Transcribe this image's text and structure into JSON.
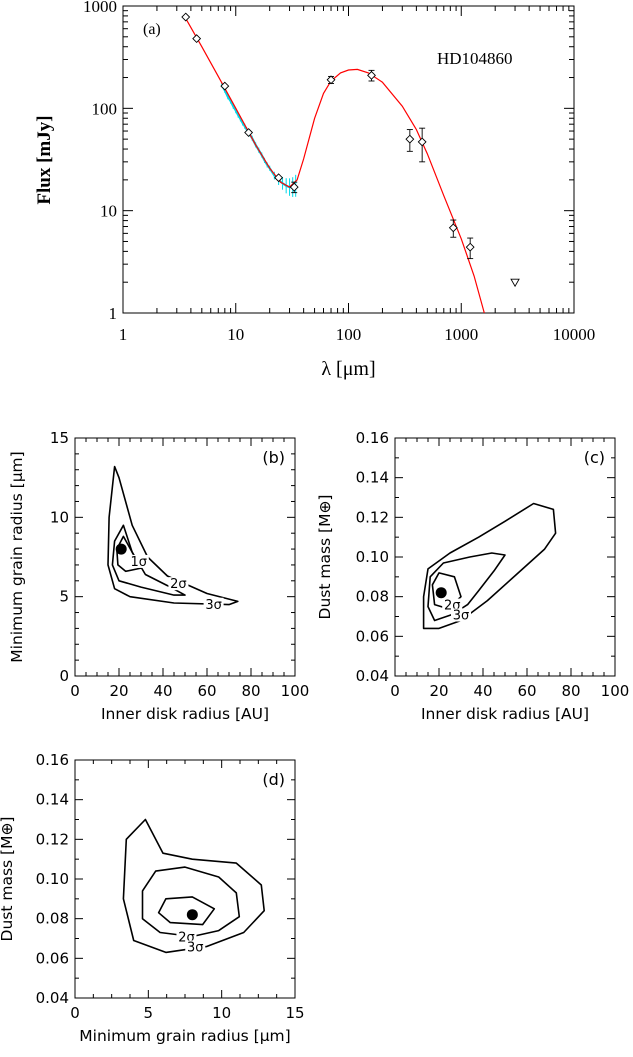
{
  "chart_data": [
    {
      "id": "a",
      "type": "scatter",
      "panel_label": "(a)",
      "annotation": "HD104860",
      "xlabel": "λ [μm]",
      "ylabel": "Flux [mJy]",
      "xscale": "log",
      "yscale": "log",
      "xlim": [
        1,
        10000
      ],
      "ylim": [
        1,
        1000
      ],
      "xticks": [
        {
          "v": 1,
          "label": "1"
        },
        {
          "v": 10,
          "label": "10"
        },
        {
          "v": 100,
          "label": "100"
        },
        {
          "v": 1000,
          "label": "1000"
        },
        {
          "v": 10000,
          "label": "10000"
        }
      ],
      "yticks": [
        {
          "v": 1,
          "label": "1"
        },
        {
          "v": 10,
          "label": "10"
        },
        {
          "v": 100,
          "label": "100"
        },
        {
          "v": 1000,
          "label": "1000"
        }
      ],
      "colors": {
        "model": "#ff0000",
        "spectrum": "#00d8e8",
        "points": "#000000"
      },
      "photometry": [
        {
          "x": 3.6,
          "y": 780,
          "err": 0
        },
        {
          "x": 4.5,
          "y": 480,
          "err": 0
        },
        {
          "x": 8.0,
          "y": 165,
          "err": 0
        },
        {
          "x": 13.0,
          "y": 58,
          "err": 0
        },
        {
          "x": 24.0,
          "y": 21,
          "err": 0
        },
        {
          "x": 33.0,
          "y": 17,
          "err": 2
        },
        {
          "x": 70.0,
          "y": 190,
          "err": 15
        },
        {
          "x": 160.0,
          "y": 210,
          "err": 25
        },
        {
          "x": 350.0,
          "y": 50,
          "err": 12
        },
        {
          "x": 450.0,
          "y": 47,
          "err": 17
        },
        {
          "x": 850.0,
          "y": 6.8,
          "err": 1.3
        },
        {
          "x": 1200.0,
          "y": 4.4,
          "err": 1.0
        }
      ],
      "upper_limits": [
        {
          "x": 3000.0,
          "y": 2.0
        }
      ],
      "spectrum": [
        {
          "x": 7.5,
          "y": 170
        },
        {
          "x": 8.0,
          "y": 150
        },
        {
          "x": 8.5,
          "y": 130
        },
        {
          "x": 9.0,
          "y": 118
        },
        {
          "x": 9.5,
          "y": 105
        },
        {
          "x": 10.0,
          "y": 95
        },
        {
          "x": 10.5,
          "y": 86
        },
        {
          "x": 11.0,
          "y": 79
        },
        {
          "x": 11.5,
          "y": 72
        },
        {
          "x": 12.0,
          "y": 67
        },
        {
          "x": 12.5,
          "y": 62
        },
        {
          "x": 13.0,
          "y": 58
        },
        {
          "x": 14.0,
          "y": 51
        },
        {
          "x": 15.0,
          "y": 44
        },
        {
          "x": 16.0,
          "y": 39
        },
        {
          "x": 17.0,
          "y": 35
        },
        {
          "x": 18.0,
          "y": 31
        },
        {
          "x": 19.0,
          "y": 28
        },
        {
          "x": 20.0,
          "y": 26
        },
        {
          "x": 22.0,
          "y": 22
        },
        {
          "x": 24.0,
          "y": 20
        },
        {
          "x": 26.0,
          "y": 18.5
        },
        {
          "x": 28.0,
          "y": 17.5
        },
        {
          "x": 30.0,
          "y": 17
        },
        {
          "x": 32.0,
          "y": 17
        },
        {
          "x": 34.0,
          "y": 17.5
        }
      ],
      "model": [
        {
          "x": 3.5,
          "y": 800
        },
        {
          "x": 5,
          "y": 400
        },
        {
          "x": 7,
          "y": 205
        },
        {
          "x": 10,
          "y": 100
        },
        {
          "x": 15,
          "y": 44
        },
        {
          "x": 20,
          "y": 26
        },
        {
          "x": 25,
          "y": 19
        },
        {
          "x": 30,
          "y": 17
        },
        {
          "x": 35,
          "y": 20
        },
        {
          "x": 40,
          "y": 32
        },
        {
          "x": 50,
          "y": 80
        },
        {
          "x": 60,
          "y": 140
        },
        {
          "x": 70,
          "y": 185
        },
        {
          "x": 85,
          "y": 222
        },
        {
          "x": 100,
          "y": 237
        },
        {
          "x": 120,
          "y": 240
        },
        {
          "x": 150,
          "y": 222
        },
        {
          "x": 200,
          "y": 180
        },
        {
          "x": 300,
          "y": 105
        },
        {
          "x": 400,
          "y": 62
        },
        {
          "x": 500,
          "y": 36
        },
        {
          "x": 700,
          "y": 14
        },
        {
          "x": 1000,
          "y": 5.3
        },
        {
          "x": 1300,
          "y": 2.3
        },
        {
          "x": 1600,
          "y": 1.0
        }
      ]
    },
    {
      "id": "b",
      "type": "contour",
      "panel_label": "(b)",
      "xlabel": "Inner disk radius [AU]",
      "ylabel": "Minimum grain radius [μm]",
      "xlim": [
        0,
        100
      ],
      "ylim": [
        0,
        15
      ],
      "xticks": [
        0,
        20,
        40,
        60,
        80,
        100
      ],
      "yticks": [
        0,
        5,
        10,
        15
      ],
      "best_fit": {
        "x": 21,
        "y": 8.0
      },
      "contours": [
        {
          "level": "1σ",
          "points": [
            [
              22,
              8.8
            ],
            [
              19,
              8.0
            ],
            [
              19.5,
              7.0
            ],
            [
              23,
              6.6
            ],
            [
              30,
              6.8
            ],
            [
              26,
              7.8
            ],
            [
              22,
              8.8
            ]
          ]
        },
        {
          "level": "2σ",
          "points": [
            [
              22,
              9.5
            ],
            [
              18,
              8.5
            ],
            [
              17,
              7.0
            ],
            [
              20,
              6.0
            ],
            [
              30,
              5.6
            ],
            [
              45,
              5.1
            ],
            [
              50,
              5.1
            ],
            [
              42,
              5.7
            ],
            [
              32,
              6.4
            ],
            [
              26,
              7.8
            ],
            [
              22,
              9.5
            ]
          ]
        },
        {
          "level": "3σ",
          "points": [
            [
              18,
              13.2
            ],
            [
              15.5,
              10
            ],
            [
              15,
              7
            ],
            [
              18,
              5.5
            ],
            [
              25,
              5.0
            ],
            [
              45,
              4.6
            ],
            [
              70,
              4.5
            ],
            [
              74,
              4.7
            ],
            [
              60,
              5.2
            ],
            [
              42,
              6.3
            ],
            [
              33,
              7.5
            ],
            [
              26,
              9.5
            ],
            [
              20,
              12.5
            ],
            [
              18,
              13.2
            ]
          ]
        }
      ],
      "contour_labels": [
        {
          "text": "1σ",
          "x": 29,
          "y": 7.0
        },
        {
          "text": "2σ",
          "x": 47,
          "y": 5.6
        },
        {
          "text": "3σ",
          "x": 63,
          "y": 4.3
        }
      ]
    },
    {
      "id": "c",
      "type": "contour",
      "panel_label": "(c)",
      "xlabel": "Inner disk radius [AU]",
      "ylabel": "Dust mass [M⊕]",
      "xlim": [
        0,
        100
      ],
      "ylim": [
        0.04,
        0.16
      ],
      "xticks": [
        0,
        20,
        40,
        60,
        80,
        100
      ],
      "yticks": [
        0.04,
        0.06,
        0.08,
        0.1,
        0.12,
        0.14,
        0.16
      ],
      "best_fit": {
        "x": 21,
        "y": 0.082
      },
      "contours": [
        {
          "level": "1σ",
          "points": [
            [
              20,
              0.092
            ],
            [
              17,
              0.086
            ],
            [
              18,
              0.076
            ],
            [
              24,
              0.074
            ],
            [
              30,
              0.08
            ],
            [
              27,
              0.09
            ],
            [
              20,
              0.092
            ]
          ]
        },
        {
          "level": "2σ",
          "points": [
            [
              22,
              0.097
            ],
            [
              16,
              0.09
            ],
            [
              15,
              0.075
            ],
            [
              18,
              0.068
            ],
            [
              26,
              0.071
            ],
            [
              33,
              0.076
            ],
            [
              38,
              0.083
            ],
            [
              45,
              0.093
            ],
            [
              50,
              0.101
            ],
            [
              44,
              0.102
            ],
            [
              34,
              0.1
            ],
            [
              22,
              0.097
            ]
          ]
        },
        {
          "level": "3σ",
          "points": [
            [
              25,
              0.102
            ],
            [
              15,
              0.094
            ],
            [
              13,
              0.08
            ],
            [
              13,
              0.064
            ],
            [
              20,
              0.064
            ],
            [
              30,
              0.068
            ],
            [
              42,
              0.078
            ],
            [
              55,
              0.091
            ],
            [
              68,
              0.104
            ],
            [
              73,
              0.112
            ],
            [
              72,
              0.124
            ],
            [
              63,
              0.127
            ],
            [
              50,
              0.118
            ],
            [
              38,
              0.11
            ],
            [
              25,
              0.102
            ]
          ]
        }
      ],
      "contour_labels": [
        {
          "text": "2σ",
          "x": 26,
          "y": 0.074
        },
        {
          "text": "3σ",
          "x": 30,
          "y": 0.069
        }
      ]
    },
    {
      "id": "d",
      "type": "contour",
      "panel_label": "(d)",
      "xlabel": "Minimum grain radius [μm]",
      "ylabel": "Dust mass [M⊕]",
      "xlim": [
        0,
        15
      ],
      "ylim": [
        0.04,
        0.16
      ],
      "xticks": [
        0,
        5,
        10,
        15
      ],
      "yticks": [
        0.04,
        0.06,
        0.08,
        0.1,
        0.12,
        0.14,
        0.16
      ],
      "best_fit": {
        "x": 8.0,
        "y": 0.082
      },
      "contours": [
        {
          "level": "1σ",
          "points": [
            [
              6.2,
              0.09
            ],
            [
              5.7,
              0.083
            ],
            [
              6.5,
              0.078
            ],
            [
              8.7,
              0.077
            ],
            [
              9.5,
              0.085
            ],
            [
              8.0,
              0.091
            ],
            [
              6.2,
              0.09
            ]
          ]
        },
        {
          "level": "2σ",
          "points": [
            [
              5.5,
              0.104
            ],
            [
              4.6,
              0.094
            ],
            [
              4.6,
              0.08
            ],
            [
              5.8,
              0.073
            ],
            [
              8.0,
              0.071
            ],
            [
              9.8,
              0.074
            ],
            [
              11.2,
              0.081
            ],
            [
              11.0,
              0.093
            ],
            [
              9.8,
              0.101
            ],
            [
              7.5,
              0.106
            ],
            [
              5.5,
              0.104
            ]
          ]
        },
        {
          "level": "3σ",
          "points": [
            [
              4.8,
              0.13
            ],
            [
              3.5,
              0.12
            ],
            [
              3.3,
              0.09
            ],
            [
              4.0,
              0.069
            ],
            [
              6.2,
              0.063
            ],
            [
              9.0,
              0.066
            ],
            [
              11.5,
              0.073
            ],
            [
              12.9,
              0.084
            ],
            [
              12.7,
              0.097
            ],
            [
              11.0,
              0.108
            ],
            [
              8.0,
              0.11
            ],
            [
              6.0,
              0.113
            ],
            [
              4.8,
              0.13
            ]
          ]
        }
      ],
      "contour_labels": [
        {
          "text": "2σ",
          "x": 7.6,
          "y": 0.069
        },
        {
          "text": "3σ",
          "x": 8.2,
          "y": 0.064
        }
      ]
    }
  ]
}
